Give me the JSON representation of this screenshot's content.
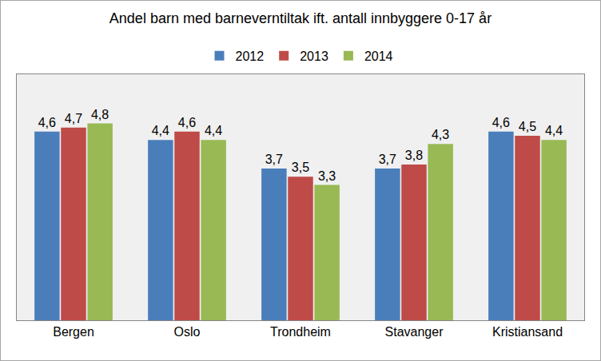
{
  "chart_data": {
    "type": "bar",
    "title": "Andel barn med barneverntiltak ift. antall innbyggere 0-17 år",
    "categories": [
      "Bergen",
      "Oslo",
      "Trondheim",
      "Stavanger",
      "Kristiansand"
    ],
    "series": [
      {
        "name": "2012",
        "color": "#4a7ebb",
        "values": [
          4.6,
          4.4,
          3.7,
          3.7,
          4.6
        ],
        "value_labels": [
          "4,6",
          "4,4",
          "3,7",
          "3,7",
          "4,6"
        ]
      },
      {
        "name": "2013",
        "color": "#be4b48",
        "values": [
          4.7,
          4.6,
          3.5,
          3.8,
          4.5
        ],
        "value_labels": [
          "4,7",
          "4,6",
          "3,5",
          "3,8",
          "4,5"
        ]
      },
      {
        "name": "2014",
        "color": "#98b954",
        "values": [
          4.8,
          4.4,
          3.3,
          4.3,
          4.4
        ],
        "value_labels": [
          "4,8",
          "4,4",
          "3,3",
          "4,3",
          "4,4"
        ]
      }
    ],
    "ylim": [
      0,
      6
    ],
    "grid": false,
    "legend": "top",
    "data_labels": true,
    "tick_labels": "x"
  }
}
